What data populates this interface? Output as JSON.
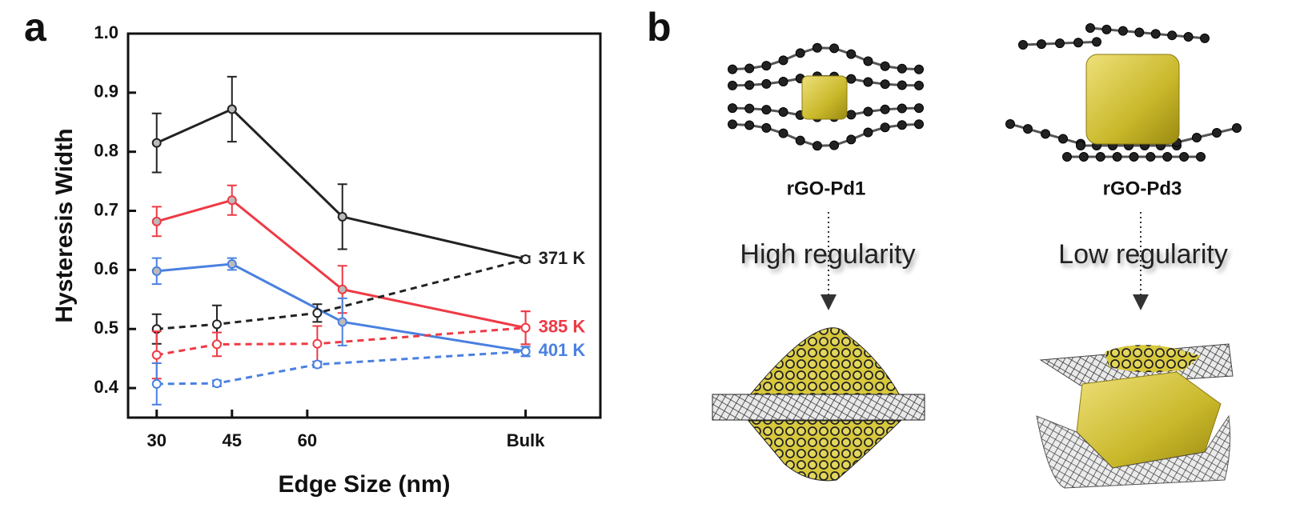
{
  "panel_labels": [
    "a",
    "b"
  ],
  "chart_data": {
    "type": "line",
    "xlabel": "Edge Size (nm)",
    "ylabel": "Hysteresis Width",
    "xlim": [
      24.3,
      118.4
    ],
    "xticks": [
      30,
      45,
      60,
      {
        "value": 103.5,
        "label": "Bulk"
      }
    ],
    "ylim": [
      0.35,
      1.0
    ],
    "yticks": [
      0.4,
      0.5,
      0.6,
      0.7,
      0.8,
      0.9,
      {
        "value": 1.0,
        "label": "1.0"
      }
    ],
    "series": [
      {
        "color": "#222222",
        "dashed": false,
        "x": [
          30,
          45,
          67,
          103.5
        ],
        "values": [
          0.815,
          0.872,
          0.69,
          0.618
        ],
        "errors": [
          0.05,
          0.055,
          0.055,
          0.005
        ],
        "label": "371 K"
      },
      {
        "color": "#ee3a45",
        "dashed": false,
        "x": [
          30,
          45,
          67,
          103.5
        ],
        "values": [
          0.682,
          0.718,
          0.567,
          0.502
        ],
        "errors": [
          0.025,
          0.025,
          0.04,
          0.028
        ],
        "label": "385 K"
      },
      {
        "color": "#4a80e0",
        "dashed": false,
        "x": [
          30,
          45,
          67,
          103.5
        ],
        "values": [
          0.598,
          0.61,
          0.512,
          0.462
        ],
        "errors": [
          0.022,
          0.01,
          0.04,
          0.008
        ],
        "label": "401 K"
      },
      {
        "color": "#222222",
        "dashed": true,
        "x": [
          30,
          42,
          62,
          103.5
        ],
        "values": [
          0.5,
          0.508,
          0.527,
          0.618
        ],
        "errors": [
          0.025,
          0.032,
          0.015,
          0.005
        ]
      },
      {
        "color": "#ee3a45",
        "dashed": true,
        "x": [
          30,
          42,
          62,
          103.5
        ],
        "values": [
          0.456,
          0.474,
          0.475,
          0.502
        ],
        "errors": [
          0.04,
          0.02,
          0.03,
          0.028
        ]
      },
      {
        "color": "#4a80e0",
        "dashed": true,
        "x": [
          30,
          42,
          62,
          103.5
        ],
        "values": [
          0.407,
          0.408,
          0.44,
          0.462
        ],
        "errors": [
          0.035,
          0.005,
          0.005,
          0.008
        ]
      }
    ]
  },
  "diagram": {
    "left": {
      "name": "rGO-Pd1",
      "caption": "High regularity"
    },
    "right": {
      "name": "rGO-Pd3",
      "caption": "Low regularity"
    }
  }
}
